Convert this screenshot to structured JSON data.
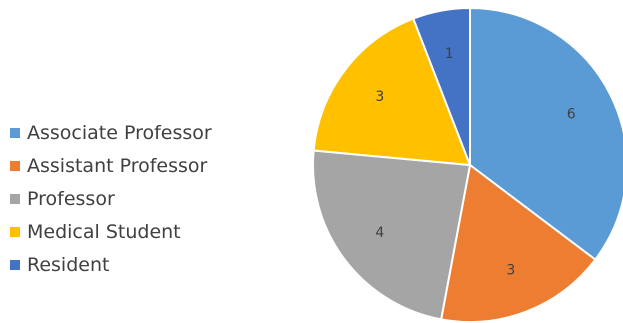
{
  "chart_data": {
    "type": "pie",
    "title": "",
    "legend_position": "left",
    "slices": [
      {
        "label": "Associate Professor",
        "value": 6,
        "color": "#5B9BD5"
      },
      {
        "label": "Assistant Professor",
        "value": 3,
        "color": "#ED7D31"
      },
      {
        "label": "Professor",
        "value": 4,
        "color": "#A5A5A5"
      },
      {
        "label": "Medical Student",
        "value": 3,
        "color": "#FFC000"
      },
      {
        "label": "Resident",
        "value": 1,
        "color": "#4472C4"
      }
    ]
  }
}
